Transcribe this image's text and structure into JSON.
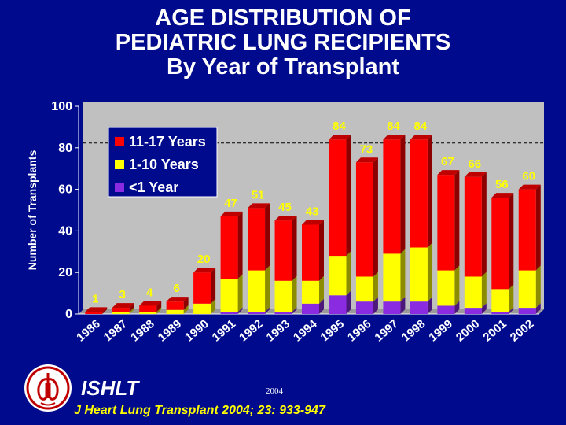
{
  "title": {
    "line1": "AGE DISTRIBUTION OF",
    "line2": "PEDIATRIC LUNG RECIPIENTS",
    "line3": "By Year of Transplant"
  },
  "footer": {
    "org": "ISHLT",
    "year": "2004",
    "citation": "J Heart Lung Transplant 2004; 23: 933-947"
  },
  "colors": {
    "background": "#000a8c",
    "plot_area": "#c0c0c0",
    "series_11_17": "#ff0000",
    "series_1_10": "#ffff00",
    "series_lt1": "#8a2be2",
    "value_labels": "#ffff00",
    "axis_text": "#ffffff"
  },
  "chart_data": {
    "type": "bar",
    "stacked": true,
    "ylabel": "Number of Transplants",
    "ylim": [
      0,
      100
    ],
    "yticks": [
      0,
      20,
      40,
      60,
      80,
      100
    ],
    "grid": false,
    "reference_line": 80,
    "legend_position": "top-left",
    "categories": [
      "1986",
      "1987",
      "1988",
      "1989",
      "1990",
      "1991",
      "1992",
      "1993",
      "1994",
      "1995",
      "1996",
      "1997",
      "1998",
      "1999",
      "2000",
      "2001",
      "2002"
    ],
    "totals": [
      1,
      3,
      4,
      6,
      20,
      47,
      51,
      45,
      43,
      84,
      73,
      84,
      84,
      67,
      66,
      56,
      60
    ],
    "series": [
      {
        "name": "<1 Year",
        "values": [
          0,
          0,
          0,
          0,
          0,
          1,
          1,
          1,
          5,
          9,
          6,
          6,
          6,
          4,
          3,
          1,
          3
        ]
      },
      {
        "name": "1-10 Years",
        "values": [
          0,
          1,
          1,
          2,
          5,
          16,
          20,
          15,
          11,
          19,
          12,
          23,
          26,
          17,
          15,
          11,
          18
        ]
      },
      {
        "name": "11-17 Years",
        "values": [
          1,
          2,
          3,
          4,
          15,
          30,
          30,
          29,
          27,
          56,
          55,
          55,
          52,
          46,
          48,
          44,
          39
        ]
      }
    ]
  }
}
